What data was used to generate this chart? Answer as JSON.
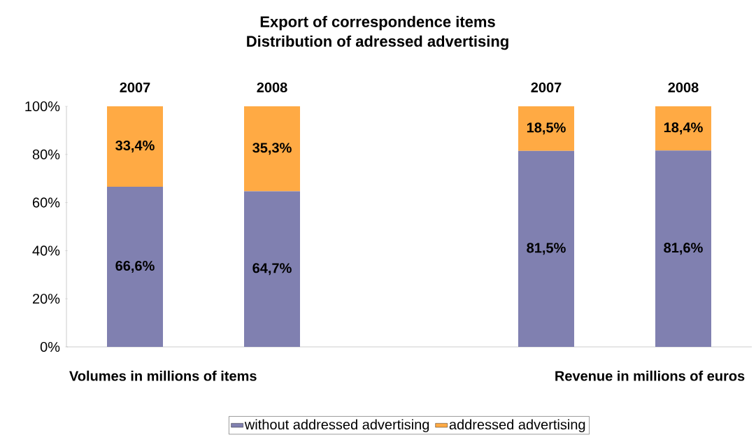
{
  "chart_data": {
    "type": "bar",
    "stacked": true,
    "title": "Export of correspondence items",
    "subtitle": "Distribution of adressed advertising",
    "categories": [
      "2007",
      "2008",
      null,
      "2007",
      "2008"
    ],
    "series": [
      {
        "name": "without addressed advertising",
        "color": "#8080b0",
        "values": [
          66.6,
          64.7,
          null,
          81.5,
          81.6
        ],
        "value_labels": [
          "66,6%",
          "64,7%",
          null,
          "81,5%",
          "81,6%"
        ]
      },
      {
        "name": "addressed advertising",
        "color": "#ffaa44",
        "values": [
          33.4,
          35.3,
          null,
          18.5,
          18.4
        ],
        "value_labels": [
          "33,4%",
          "35,3%",
          null,
          "18,5%",
          "18,4%"
        ]
      }
    ],
    "ylim": [
      0,
      100
    ],
    "yticks": [
      {
        "value": 0,
        "label": "0%"
      },
      {
        "value": 20,
        "label": "20%"
      },
      {
        "value": 40,
        "label": "40%"
      },
      {
        "value": 60,
        "label": "60%"
      },
      {
        "value": 80,
        "label": "80%"
      },
      {
        "value": 100,
        "label": "100%"
      }
    ],
    "legend": "bottom",
    "annotations": [
      "Volumes in millions of items",
      "Revenue in millions of euros"
    ]
  }
}
